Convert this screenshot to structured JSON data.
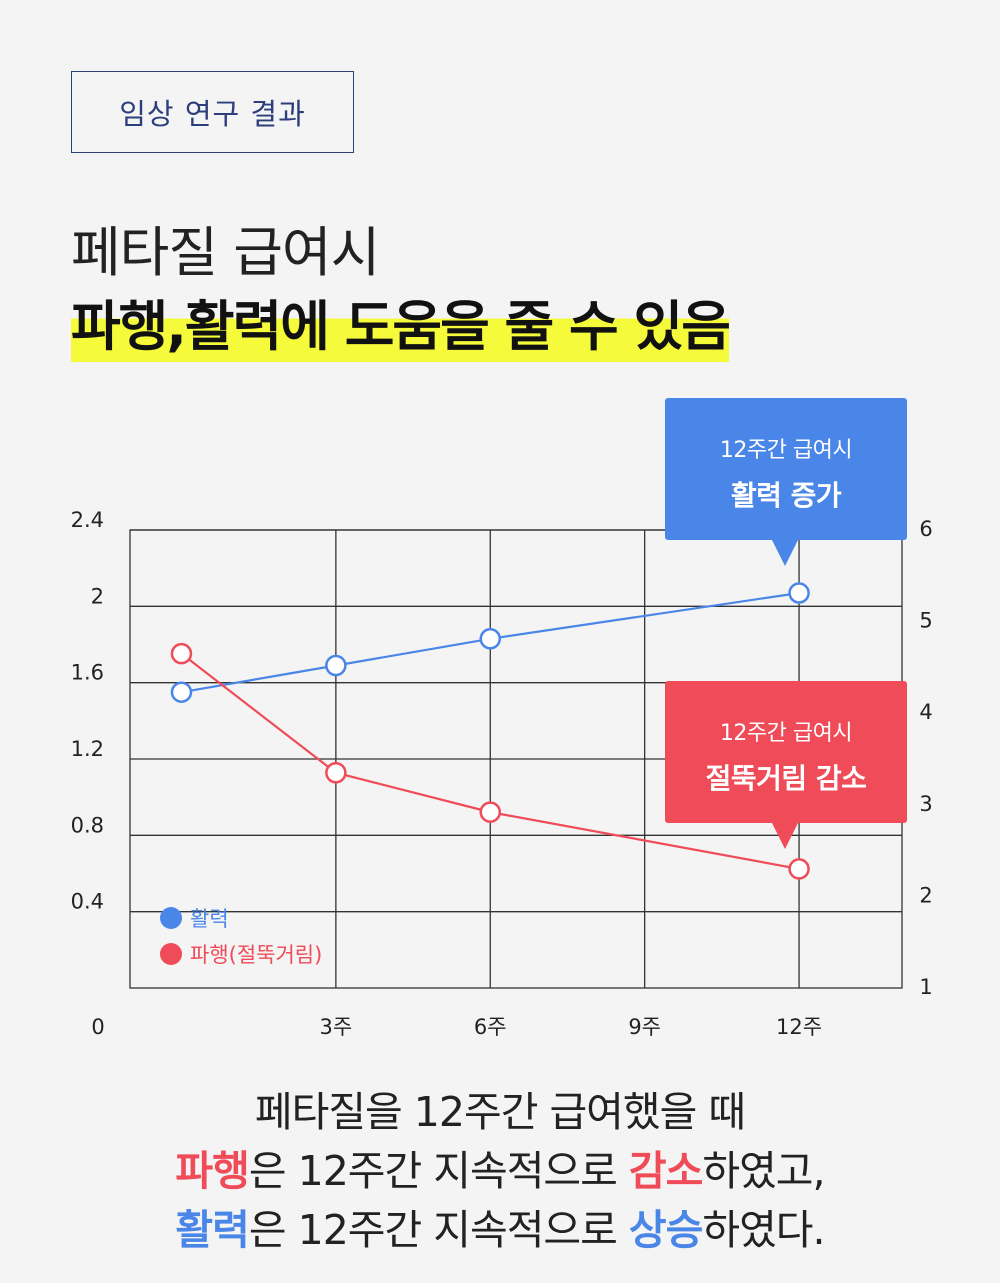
{
  "tag": "임상 연구 결과",
  "headline": {
    "line1": "페타질 급여시",
    "line2": "파행,활력에 도움을 줄 수 있음"
  },
  "colors": {
    "blue": "#4a86e8",
    "red": "#ef4b58",
    "highlight": "#f5fb3b",
    "navy": "#2c3f7a"
  },
  "callouts": {
    "vitality": {
      "sub": "12주간 급여시",
      "main": "활력 증가"
    },
    "lameness": {
      "sub": "12주간 급여시",
      "main": "절뚝거림 감소"
    }
  },
  "chart_data": {
    "type": "line",
    "title": "",
    "x_ticks": [
      {
        "x": 0,
        "label": "0"
      },
      {
        "x": 3,
        "label": "3주"
      },
      {
        "x": 6,
        "label": "6주"
      },
      {
        "x": 9,
        "label": "9주"
      },
      {
        "x": 12,
        "label": "12주"
      }
    ],
    "xlim": [
      -1,
      14
    ],
    "left_axis": {
      "ylim": [
        0,
        2.4
      ],
      "ticks": [
        "0.4",
        "0.8",
        "1.2",
        "1.6",
        "2",
        "2.4"
      ]
    },
    "right_axis": {
      "ylim": [
        1,
        6
      ],
      "ticks": [
        "1",
        "2",
        "3",
        "4",
        "5",
        "6"
      ]
    },
    "grid": true,
    "legend_position": "bottom-left",
    "series": [
      {
        "name": "활력",
        "color": "#4a86e8",
        "axis": "left",
        "points": [
          {
            "x": 0,
            "y": 1.55
          },
          {
            "x": 3,
            "y": 1.69
          },
          {
            "x": 6,
            "y": 1.83
          },
          {
            "x": 12,
            "y": 2.07
          }
        ]
      },
      {
        "name": "파행(절뚝거림)",
        "color": "#ef4b58",
        "axis": "right",
        "points": [
          {
            "x": 0,
            "y": 4.65
          },
          {
            "x": 3,
            "y": 3.35
          },
          {
            "x": 6,
            "y": 2.92
          },
          {
            "x": 12,
            "y": 2.3
          }
        ]
      }
    ]
  },
  "summary": {
    "line1": "페타질을 12주간 급여했을 때",
    "line2": {
      "hl1": "파행",
      "t1": "은 12주간 지속적으로 ",
      "hl2": "감소",
      "t2": "하였고,"
    },
    "line3": {
      "hl1": "활력",
      "t1": "은 12주간 지속적으로 ",
      "hl2": "상승",
      "t2": "하였다."
    }
  }
}
